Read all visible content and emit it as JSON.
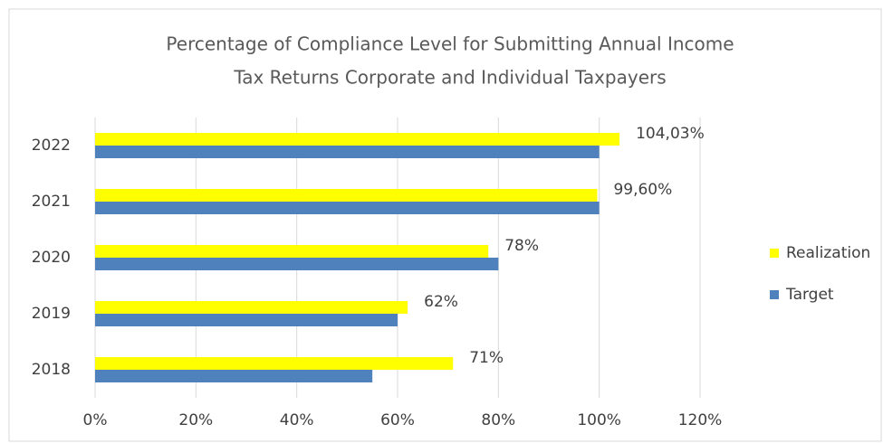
{
  "chart_data": {
    "type": "bar",
    "orientation": "horizontal",
    "title": [
      "Percentage of Compliance Level for Submitting Annual Income",
      "Tax Returns Corporate and Individual Taxpayers"
    ],
    "categories": [
      "2018",
      "2019",
      "2020",
      "2021",
      "2022"
    ],
    "series": [
      {
        "name": "Realization",
        "color": "#ffff00",
        "values": [
          71,
          62,
          78,
          99.6,
          104.03
        ],
        "value_labels": [
          "71%",
          "62%",
          "78%",
          "99,60%",
          "104,03%"
        ]
      },
      {
        "name": "Target",
        "color": "#4f81bd",
        "values": [
          55,
          60,
          80,
          100,
          100
        ]
      }
    ],
    "xlim": [
      0,
      120
    ],
    "xticks": [
      {
        "value": 0,
        "label": "0%"
      },
      {
        "value": 20,
        "label": "20%"
      },
      {
        "value": 40,
        "label": "40%"
      },
      {
        "value": 60,
        "label": "60%"
      },
      {
        "value": 80,
        "label": "80%"
      },
      {
        "value": 100,
        "label": "100%"
      },
      {
        "value": 120,
        "label": "120%"
      }
    ],
    "grid": true,
    "legend": "right"
  }
}
